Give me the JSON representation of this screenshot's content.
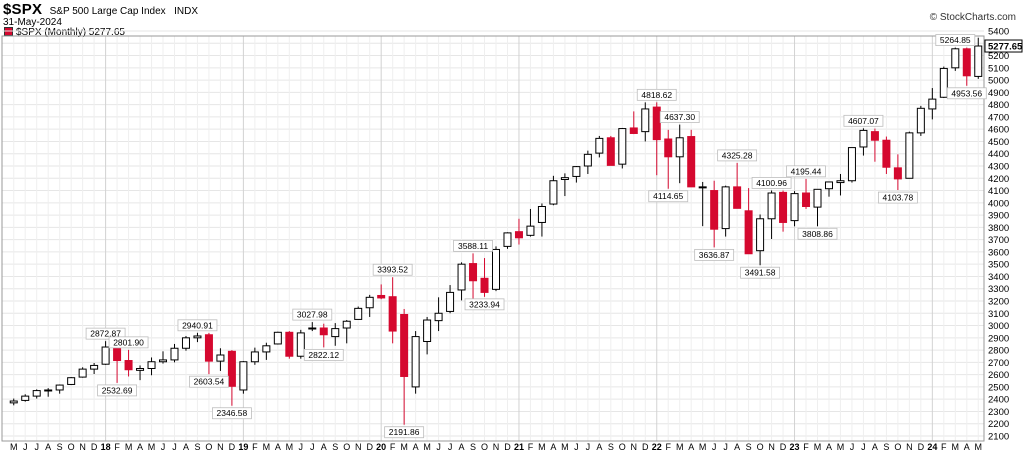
{
  "header": {
    "symbol": "$SPX",
    "name": "S&P 500 Large Cap Index",
    "exchange": "INDX",
    "date": "31-May-2024",
    "watermark": "© StockCharts.com",
    "legend": "$SPX (Monthly) 5277.65"
  },
  "colors": {
    "down": "#d5082f",
    "up": "#ffffff",
    "outline": "#000000",
    "grid": "#e6e6e6"
  },
  "chart_data": {
    "type": "candlestick",
    "ylim": [
      2100,
      5400
    ],
    "y_ticks": [
      2100,
      2200,
      2300,
      2400,
      2500,
      2600,
      2700,
      2800,
      2900,
      3000,
      3100,
      3200,
      3300,
      3400,
      3500,
      3600,
      3700,
      3800,
      3900,
      4000,
      4100,
      4200,
      4300,
      4400,
      4500,
      4600,
      4700,
      4800,
      4900,
      5000,
      5100,
      5200,
      5300,
      5400
    ],
    "last_value_label": "5277.65",
    "x_labels": [
      "M",
      "J",
      "J",
      "A",
      "S",
      "O",
      "N",
      "D",
      "18",
      "F",
      "M",
      "A",
      "M",
      "J",
      "J",
      "A",
      "S",
      "O",
      "N",
      "D",
      "19",
      "F",
      "M",
      "A",
      "M",
      "J",
      "J",
      "A",
      "S",
      "O",
      "N",
      "D",
      "20",
      "F",
      "M",
      "A",
      "M",
      "J",
      "J",
      "A",
      "S",
      "O",
      "N",
      "D",
      "21",
      "F",
      "M",
      "A",
      "M",
      "J",
      "J",
      "A",
      "S",
      "O",
      "N",
      "D",
      "22",
      "F",
      "M",
      "A",
      "M",
      "J",
      "J",
      "A",
      "S",
      "O",
      "N",
      "D",
      "23",
      "F",
      "M",
      "A",
      "M",
      "J",
      "J",
      "A",
      "S",
      "O",
      "N",
      "D",
      "24",
      "F",
      "M",
      "A",
      "M"
    ],
    "candles": [
      {
        "o": 2370,
        "h": 2405,
        "l": 2350,
        "c": 2385
      },
      {
        "o": 2390,
        "h": 2440,
        "l": 2380,
        "c": 2425
      },
      {
        "o": 2425,
        "h": 2480,
        "l": 2405,
        "c": 2470
      },
      {
        "o": 2470,
        "h": 2490,
        "l": 2420,
        "c": 2475
      },
      {
        "o": 2475,
        "h": 2520,
        "l": 2445,
        "c": 2515
      },
      {
        "o": 2520,
        "h": 2580,
        "l": 2515,
        "c": 2575
      },
      {
        "o": 2580,
        "h": 2660,
        "l": 2575,
        "c": 2645
      },
      {
        "o": 2645,
        "h": 2695,
        "l": 2605,
        "c": 2675
      },
      {
        "o": 2685,
        "h": 2872.87,
        "l": 2680,
        "c": 2825
      },
      {
        "o": 2815,
        "h": 2835,
        "l": 2532.69,
        "c": 2715
      },
      {
        "o": 2715,
        "h": 2801.9,
        "l": 2585,
        "c": 2640
      },
      {
        "o": 2635,
        "h": 2675,
        "l": 2555,
        "c": 2650
      },
      {
        "o": 2650,
        "h": 2740,
        "l": 2595,
        "c": 2705
      },
      {
        "o": 2705,
        "h": 2790,
        "l": 2690,
        "c": 2720
      },
      {
        "o": 2720,
        "h": 2850,
        "l": 2700,
        "c": 2815
      },
      {
        "o": 2815,
        "h": 2915,
        "l": 2795,
        "c": 2900
      },
      {
        "o": 2900,
        "h": 2940.91,
        "l": 2865,
        "c": 2915
      },
      {
        "o": 2925,
        "h": 2940,
        "l": 2603.54,
        "c": 2710
      },
      {
        "o": 2710,
        "h": 2815,
        "l": 2630,
        "c": 2760
      },
      {
        "o": 2790,
        "h": 2800,
        "l": 2346.58,
        "c": 2505
      },
      {
        "o": 2475,
        "h": 2710,
        "l": 2445,
        "c": 2705
      },
      {
        "o": 2705,
        "h": 2820,
        "l": 2680,
        "c": 2785
      },
      {
        "o": 2785,
        "h": 2860,
        "l": 2720,
        "c": 2835
      },
      {
        "o": 2850,
        "h": 2950,
        "l": 2845,
        "c": 2945
      },
      {
        "o": 2945,
        "h": 2955,
        "l": 2730,
        "c": 2750
      },
      {
        "o": 2750,
        "h": 2965,
        "l": 2730,
        "c": 2940
      },
      {
        "o": 2975,
        "h": 3027.98,
        "l": 2955,
        "c": 2980
      },
      {
        "o": 2980,
        "h": 3015,
        "l": 2822.12,
        "c": 2925
      },
      {
        "o": 2910,
        "h": 3020,
        "l": 2835,
        "c": 2975
      },
      {
        "o": 2980,
        "h": 3045,
        "l": 2855,
        "c": 3035
      },
      {
        "o": 3050,
        "h": 3155,
        "l": 3050,
        "c": 3140
      },
      {
        "o": 3145,
        "h": 3250,
        "l": 3070,
        "c": 3230
      },
      {
        "o": 3245,
        "h": 3335,
        "l": 3215,
        "c": 3225
      },
      {
        "o": 3235,
        "h": 3393.52,
        "l": 2855,
        "c": 2955
      },
      {
        "o": 3090,
        "h": 3135,
        "l": 2191.86,
        "c": 2585
      },
      {
        "o": 2500,
        "h": 2955,
        "l": 2445,
        "c": 2910
      },
      {
        "o": 2870,
        "h": 3070,
        "l": 2765,
        "c": 3045
      },
      {
        "o": 3040,
        "h": 3230,
        "l": 2955,
        "c": 3100
      },
      {
        "o": 3115,
        "h": 3330,
        "l": 3100,
        "c": 3270
      },
      {
        "o": 3290,
        "h": 3515,
        "l": 3205,
        "c": 3500
      },
      {
        "o": 3505,
        "h": 3588.11,
        "l": 3210,
        "c": 3365
      },
      {
        "o": 3385,
        "h": 3550,
        "l": 3233.94,
        "c": 3270
      },
      {
        "o": 3295,
        "h": 3645,
        "l": 3280,
        "c": 3620
      },
      {
        "o": 3645,
        "h": 3760,
        "l": 3625,
        "c": 3755
      },
      {
        "o": 3765,
        "h": 3870,
        "l": 3660,
        "c": 3715
      },
      {
        "o": 3735,
        "h": 3950,
        "l": 3725,
        "c": 3810
      },
      {
        "o": 3840,
        "h": 3995,
        "l": 3725,
        "c": 3970
      },
      {
        "o": 3990,
        "h": 4220,
        "l": 3980,
        "c": 4180
      },
      {
        "o": 4190,
        "h": 4240,
        "l": 4055,
        "c": 4205
      },
      {
        "o": 4215,
        "h": 4300,
        "l": 4165,
        "c": 4295
      },
      {
        "o": 4300,
        "h": 4425,
        "l": 4235,
        "c": 4395
      },
      {
        "o": 4405,
        "h": 4545,
        "l": 4370,
        "c": 4525
      },
      {
        "o": 4530,
        "h": 4545,
        "l": 4305,
        "c": 4305
      },
      {
        "o": 4315,
        "h": 4610,
        "l": 4280,
        "c": 4605
      },
      {
        "o": 4610,
        "h": 4745,
        "l": 4560,
        "c": 4565
      },
      {
        "o": 4580,
        "h": 4818.62,
        "l": 4500,
        "c": 4765
      },
      {
        "o": 4780,
        "h": 4818.62,
        "l": 4225,
        "c": 4515
      },
      {
        "o": 4520,
        "h": 4595,
        "l": 4114.65,
        "c": 4375
      },
      {
        "o": 4375,
        "h": 4637.3,
        "l": 4160,
        "c": 4530
      },
      {
        "o": 4540,
        "h": 4595,
        "l": 4130,
        "c": 4130
      },
      {
        "o": 4130,
        "h": 4170,
        "l": 3810,
        "c": 4130
      },
      {
        "o": 4100,
        "h": 4180,
        "l": 3636.87,
        "c": 3785
      },
      {
        "o": 3790,
        "h": 4140,
        "l": 3725,
        "c": 4130
      },
      {
        "o": 4130,
        "h": 4325.28,
        "l": 3955,
        "c": 3955
      },
      {
        "o": 3935,
        "h": 4120,
        "l": 3585,
        "c": 3585
      },
      {
        "o": 3610,
        "h": 3905,
        "l": 3491.58,
        "c": 3870
      },
      {
        "o": 3870,
        "h": 4100.96,
        "l": 3705,
        "c": 4080
      },
      {
        "o": 4085,
        "h": 4100,
        "l": 3765,
        "c": 3840
      },
      {
        "o": 3855,
        "h": 4095,
        "l": 3808.86,
        "c": 4075
      },
      {
        "o": 4080,
        "h": 4195.44,
        "l": 3950,
        "c": 3970
      },
      {
        "o": 3965,
        "h": 4110,
        "l": 3808.86,
        "c": 4110
      },
      {
        "o": 4115,
        "h": 4170,
        "l": 4050,
        "c": 4170
      },
      {
        "o": 4165,
        "h": 4235,
        "l": 4060,
        "c": 4180
      },
      {
        "o": 4180,
        "h": 4450,
        "l": 4165,
        "c": 4450
      },
      {
        "o": 4455,
        "h": 4607.07,
        "l": 4385,
        "c": 4590
      },
      {
        "o": 4580,
        "h": 4605,
        "l": 4335,
        "c": 4510
      },
      {
        "o": 4510,
        "h": 4540,
        "l": 4235,
        "c": 4290
      },
      {
        "o": 4285,
        "h": 4395,
        "l": 4103.78,
        "c": 4195
      },
      {
        "o": 4200,
        "h": 4580,
        "l": 4200,
        "c": 4570
      },
      {
        "o": 4570,
        "h": 4790,
        "l": 4545,
        "c": 4770
      },
      {
        "o": 4765,
        "h": 4935,
        "l": 4680,
        "c": 4845
      },
      {
        "o": 4860,
        "h": 5110,
        "l": 4855,
        "c": 5095
      },
      {
        "o": 5100,
        "h": 5264.85,
        "l": 5075,
        "c": 5255
      },
      {
        "o": 5255,
        "h": 5265,
        "l": 4953.56,
        "c": 5035
      },
      {
        "o": 5030,
        "h": 5345,
        "l": 5010,
        "c": 5277.65
      }
    ],
    "annotations": [
      {
        "i": 8,
        "text": "2872.87",
        "pos": "above"
      },
      {
        "i": 9,
        "text": "2532.69",
        "pos": "below"
      },
      {
        "i": 10,
        "text": "2801.90",
        "pos": "above"
      },
      {
        "i": 16,
        "text": "2940.91",
        "pos": "above"
      },
      {
        "i": 17,
        "text": "2603.54",
        "pos": "below"
      },
      {
        "i": 19,
        "text": "2346.58",
        "pos": "below"
      },
      {
        "i": 26,
        "text": "3027.98",
        "pos": "above"
      },
      {
        "i": 27,
        "text": "2822.12",
        "pos": "below"
      },
      {
        "i": 33,
        "text": "3393.52",
        "pos": "above"
      },
      {
        "i": 34,
        "text": "2191.86",
        "pos": "below"
      },
      {
        "i": 40,
        "text": "3588.11",
        "pos": "above"
      },
      {
        "i": 41,
        "text": "3233.94",
        "pos": "below"
      },
      {
        "i": 56,
        "text": "4818.62",
        "pos": "above"
      },
      {
        "i": 57,
        "text": "4114.65",
        "pos": "below"
      },
      {
        "i": 58,
        "text": "4637.30",
        "pos": "above"
      },
      {
        "i": 61,
        "text": "3636.87",
        "pos": "below"
      },
      {
        "i": 63,
        "text": "4325.28",
        "pos": "above"
      },
      {
        "i": 65,
        "text": "3491.58",
        "pos": "below"
      },
      {
        "i": 66,
        "text": "4100.96",
        "pos": "above"
      },
      {
        "i": 69,
        "text": "4195.44",
        "pos": "above"
      },
      {
        "i": 70,
        "text": "3808.86",
        "pos": "below"
      },
      {
        "i": 74,
        "text": "4607.07",
        "pos": "above"
      },
      {
        "i": 77,
        "text": "4103.78",
        "pos": "below"
      },
      {
        "i": 82,
        "text": "5264.85",
        "pos": "above"
      },
      {
        "i": 83,
        "text": "4953.56",
        "pos": "below"
      }
    ]
  }
}
